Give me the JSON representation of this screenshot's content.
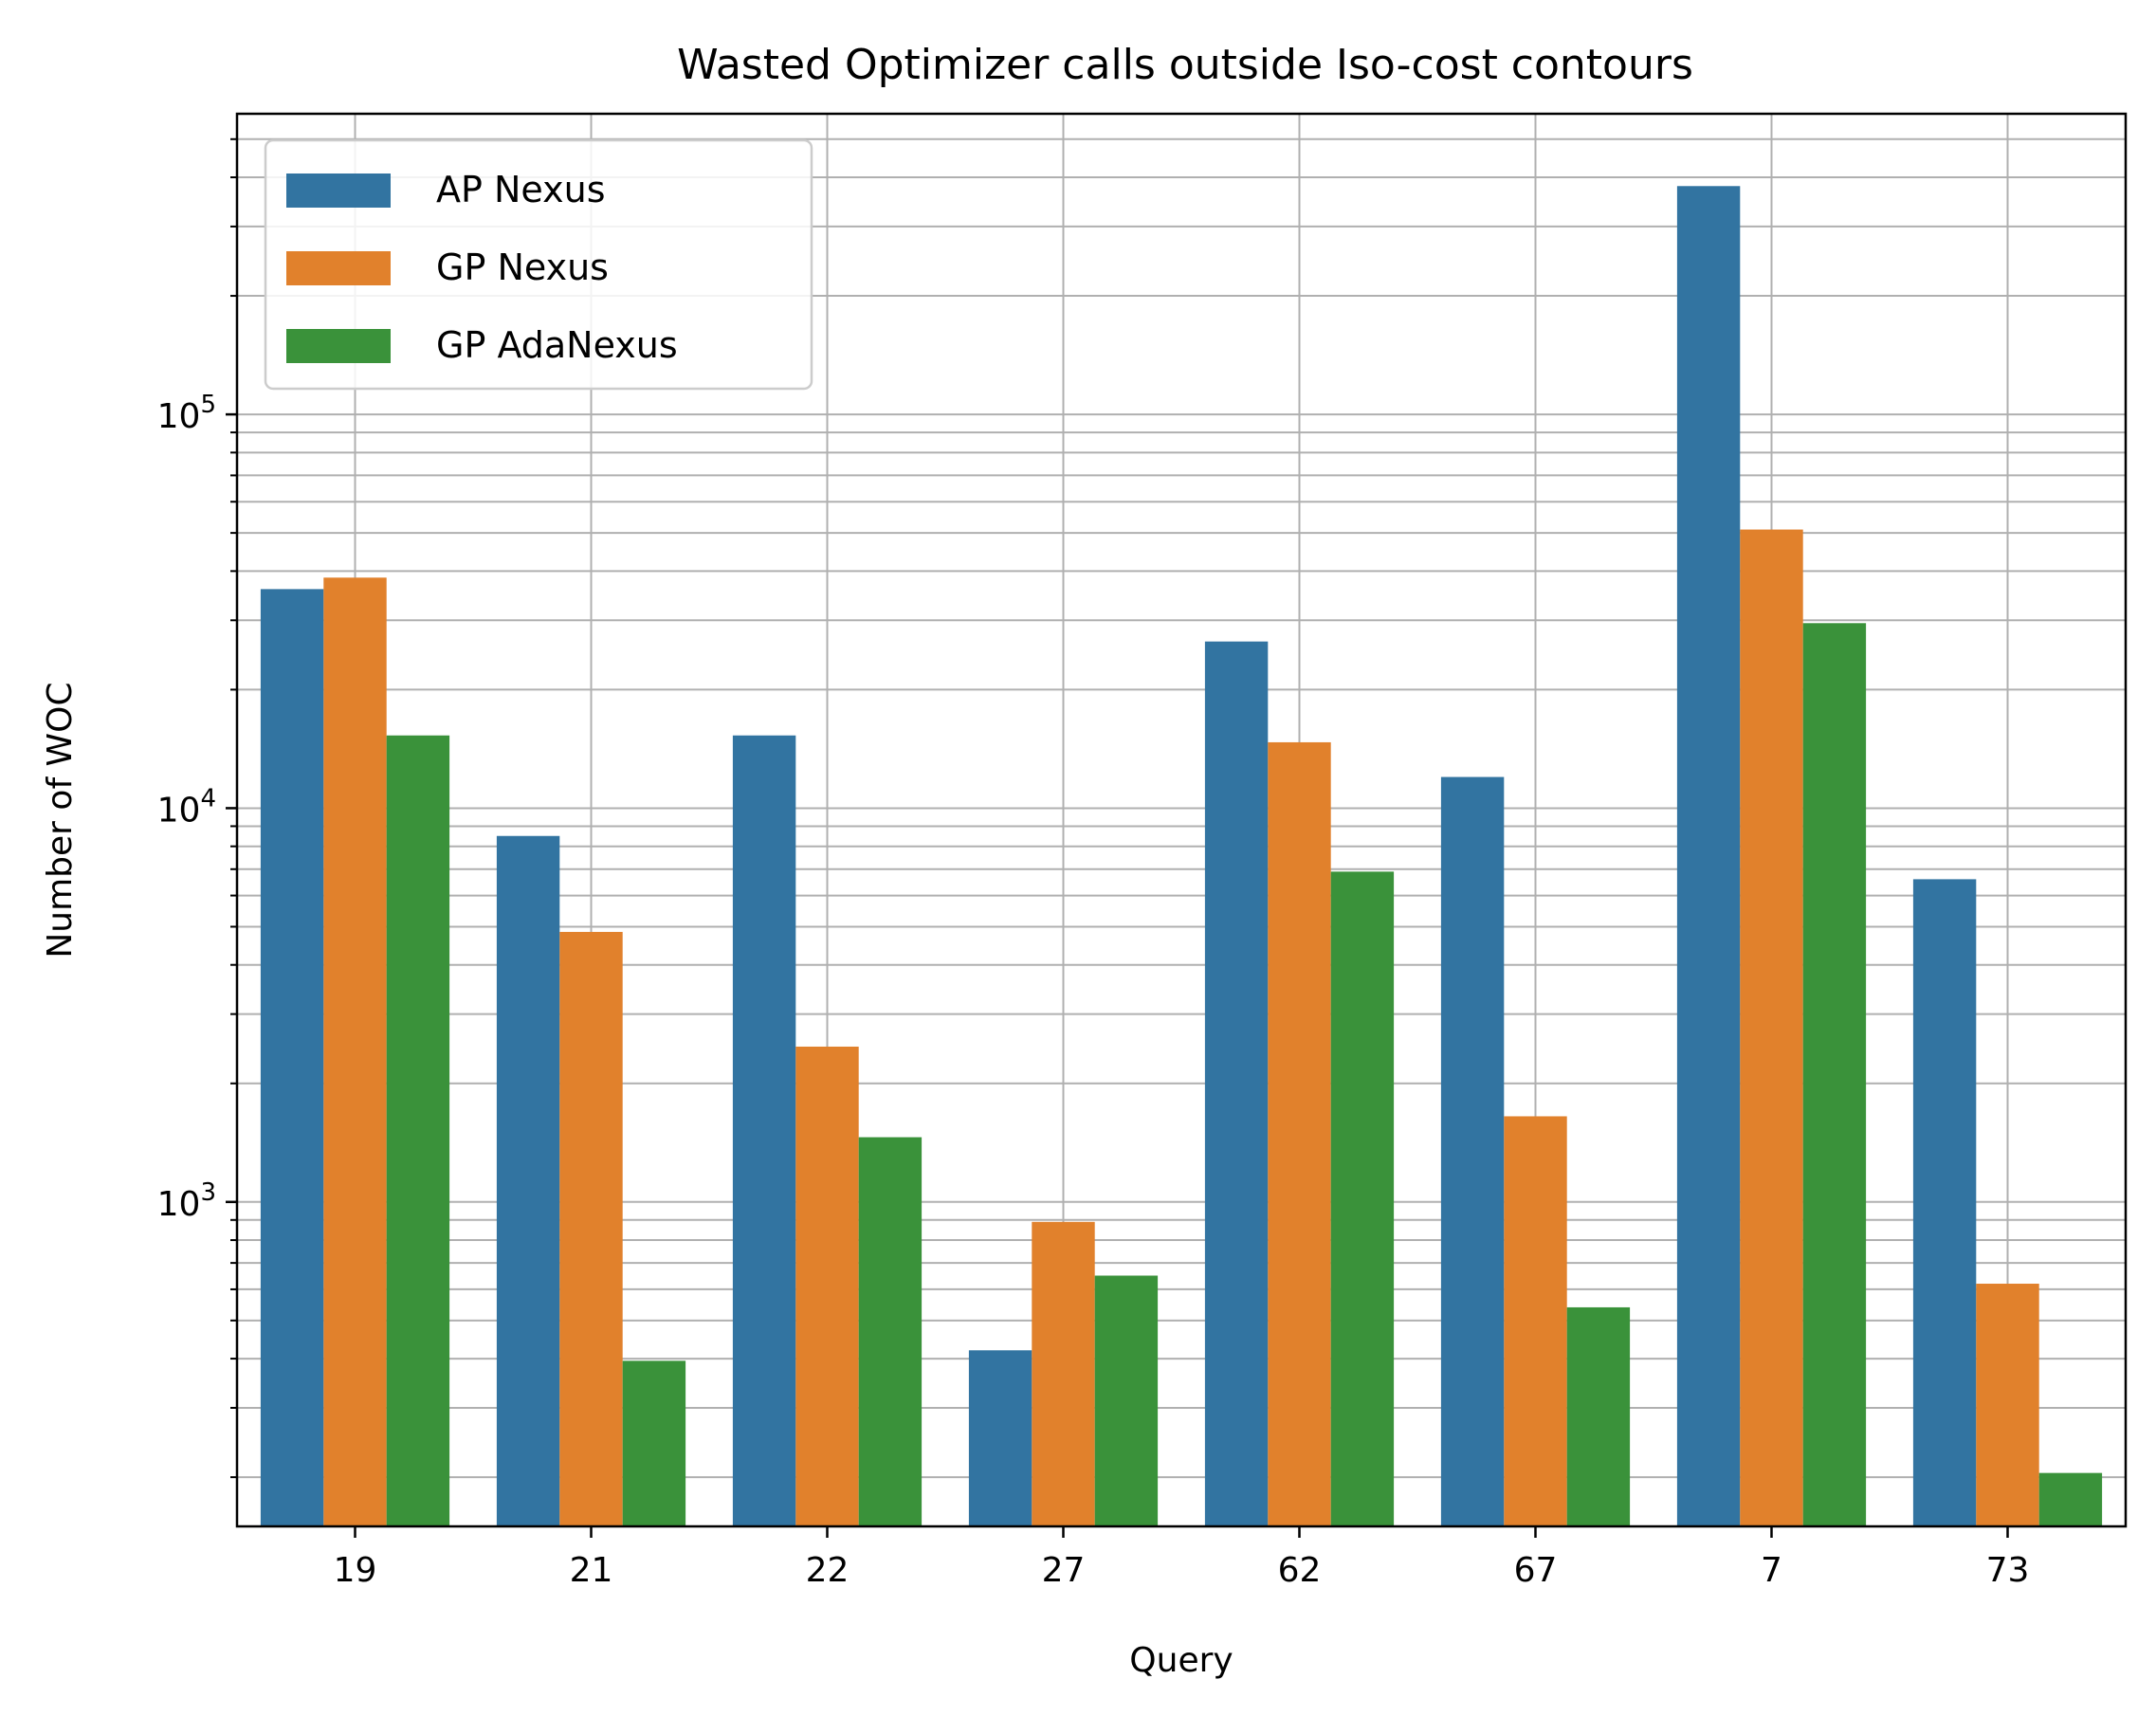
{
  "chart_data": {
    "type": "bar",
    "title": "Wasted Optimizer calls outside Iso-cost contours",
    "xlabel": "Query",
    "ylabel": "Number of WOC",
    "yscale": "log",
    "ylim": [
      150,
      580000
    ],
    "categories": [
      "19",
      "21",
      "22",
      "27",
      "62",
      "67",
      "7",
      "73"
    ],
    "series": [
      {
        "name": "AP Nexus",
        "color": "#3274a1",
        "values": [
          36000,
          8500,
          15300,
          420,
          26500,
          12000,
          380000,
          6600
        ]
      },
      {
        "name": "GP Nexus",
        "color": "#e1812c",
        "values": [
          38500,
          4850,
          2480,
          890,
          14700,
          1650,
          51000,
          620
        ]
      },
      {
        "name": "GP AdaNexus",
        "color": "#3a923a",
        "values": [
          15300,
          395,
          1460,
          650,
          6900,
          540,
          29500,
          205
        ]
      }
    ],
    "y_ticks": [
      {
        "value": 1000,
        "base": "10",
        "exp": "3"
      },
      {
        "value": 10000,
        "base": "10",
        "exp": "4"
      },
      {
        "value": 100000,
        "base": "10",
        "exp": "5"
      }
    ],
    "grid": true,
    "legend_position": "upper-left"
  }
}
